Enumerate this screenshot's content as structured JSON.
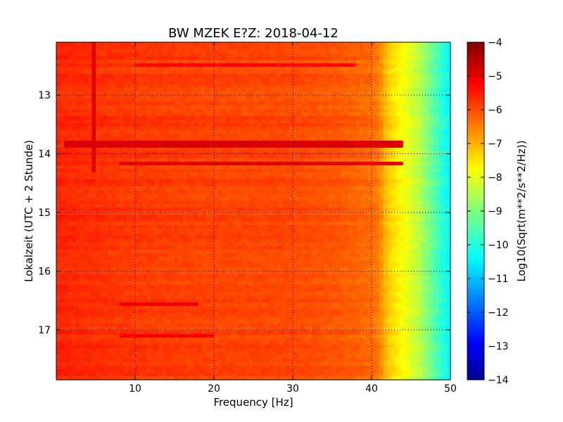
{
  "chart_data": {
    "type": "heatmap",
    "title": "BW MZEK E?Z: 2018-04-12",
    "xlabel": "Frequency [Hz]",
    "ylabel": "Lokalzeit (UTC + 2 Stunde)",
    "xlim": [
      0,
      50
    ],
    "ylim": [
      12.1,
      17.85
    ],
    "y_inverted": true,
    "x_ticks": [
      10,
      20,
      30,
      40,
      50
    ],
    "x_tick_labels": [
      "10",
      "20",
      "30",
      "40",
      "50"
    ],
    "y_ticks": [
      13,
      14,
      15,
      16,
      17
    ],
    "y_tick_labels": [
      "13",
      "14",
      "15",
      "16",
      "17"
    ],
    "grid": true,
    "colormap": "jet",
    "colorbar": {
      "label": "Log10(Sqrt(m**2/s**2/Hz))",
      "range": [
        -14,
        -4
      ],
      "ticks": [
        -4,
        -5,
        -6,
        -7,
        -8,
        -9,
        -10,
        -11,
        -12,
        -13,
        -14
      ],
      "tick_labels": [
        "−4",
        "−5",
        "−6",
        "−7",
        "−8",
        "−9",
        "−10",
        "−11",
        "−12",
        "−13",
        "−14"
      ]
    },
    "frequency_profile_hz": [
      0,
      5,
      10,
      20,
      30,
      36,
      40,
      41,
      42,
      44,
      46,
      48,
      50
    ],
    "frequency_profile_level": [
      -5.6,
      -5.7,
      -5.8,
      -5.9,
      -5.95,
      -6.1,
      -6.3,
      -6.5,
      -7.2,
      -7.8,
      -8.4,
      -9.4,
      -10.3
    ],
    "strong_bands": [
      {
        "time": 13.83,
        "from_hz": 1,
        "to_hz": 44,
        "level": -4.9
      },
      {
        "time": 14.18,
        "from_hz": 8,
        "to_hz": 44,
        "level": -5.0
      }
    ],
    "weak_bands": [
      {
        "time": 12.47,
        "from_hz": 10,
        "to_hz": 38,
        "level": -5.3
      },
      {
        "time": 16.58,
        "from_hz": 8,
        "to_hz": 18,
        "level": -5.1
      },
      {
        "time": 17.12,
        "from_hz": 8,
        "to_hz": 20,
        "level": -5.2
      }
    ],
    "vertical_line": {
      "frequency": 4.6,
      "from_time": 12.1,
      "to_time": 14.3,
      "level": -5.0
    }
  }
}
